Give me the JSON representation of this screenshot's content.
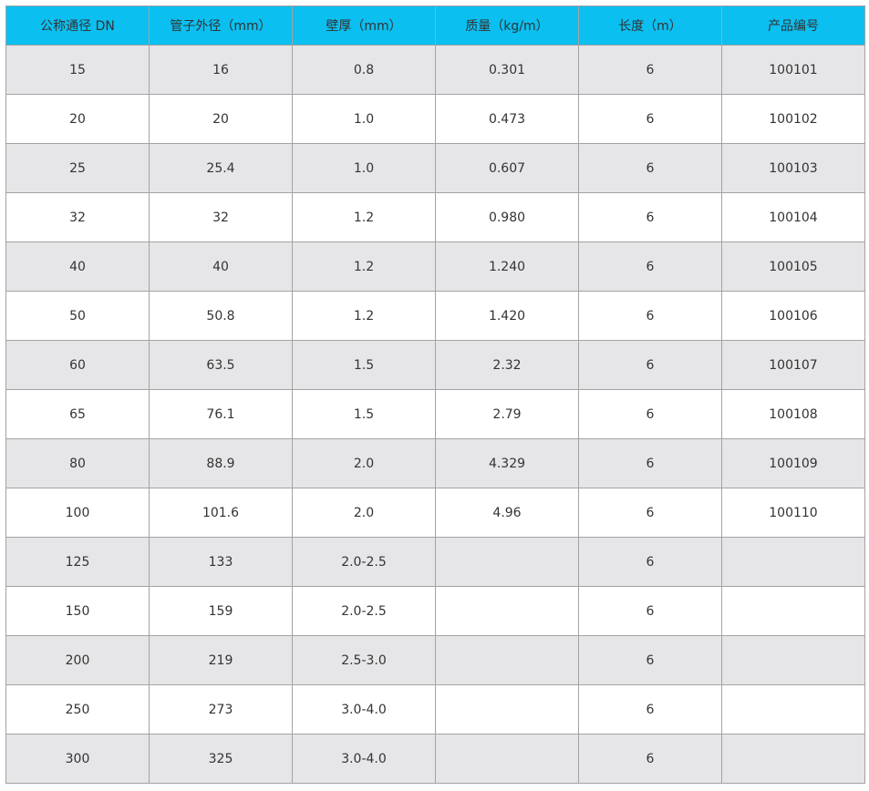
{
  "header_color": "#0bbff0",
  "headers": [
    "公称通径 DN",
    "管子外径（mm）",
    "壁厚（mm）",
    "质量（kg/m）",
    "长度（m）",
    "产品编号"
  ],
  "rows": [
    [
      "15",
      "16",
      "0.8",
      "0.301",
      "6",
      "100101"
    ],
    [
      "20",
      "20",
      "1.0",
      "0.473",
      "6",
      "100102"
    ],
    [
      "25",
      "25.4",
      "1.0",
      "0.607",
      "6",
      "100103"
    ],
    [
      "32",
      "32",
      "1.2",
      "0.980",
      "6",
      "100104"
    ],
    [
      "40",
      "40",
      "1.2",
      "1.240",
      "6",
      "100105"
    ],
    [
      "50",
      "50.8",
      "1.2",
      "1.420",
      "6",
      "100106"
    ],
    [
      "60",
      "63.5",
      "1.5",
      "2.32",
      "6",
      "100107"
    ],
    [
      "65",
      "76.1",
      "1.5",
      "2.79",
      "6",
      "100108"
    ],
    [
      "80",
      "88.9",
      "2.0",
      "4.329",
      "6",
      "100109"
    ],
    [
      "100",
      "101.6",
      "2.0",
      "4.96",
      "6",
      "100110"
    ],
    [
      "125",
      "133",
      "2.0-2.5",
      "",
      "6",
      ""
    ],
    [
      "150",
      "159",
      "2.0-2.5",
      "",
      "6",
      ""
    ],
    [
      "200",
      "219",
      "2.5-3.0",
      "",
      "6",
      ""
    ],
    [
      "250",
      "273",
      "3.0-4.0",
      "",
      "6",
      ""
    ],
    [
      "300",
      "325",
      "3.0-4.0",
      "",
      "6",
      ""
    ]
  ]
}
